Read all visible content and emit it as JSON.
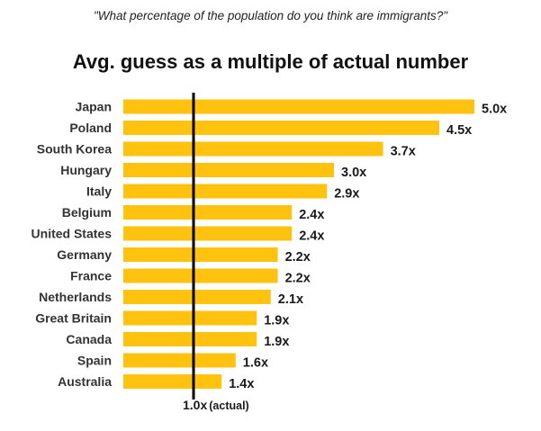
{
  "subtitle": "\"What percentage of the population do you think are immigrants?\"",
  "title": "Avg. guess as a multiple of actual number",
  "chart_data": {
    "type": "bar",
    "orientation": "horizontal",
    "title": "Avg. guess as a multiple of actual number",
    "subtitle": "\"What percentage of the population do you think are immigrants?\"",
    "categories": [
      "Japan",
      "Poland",
      "South Korea",
      "Hungary",
      "Italy",
      "Belgium",
      "United States",
      "Germany",
      "France",
      "Netherlands",
      "Great Britain",
      "Canada",
      "Spain",
      "Australia"
    ],
    "values": [
      5.0,
      4.5,
      3.7,
      3.0,
      2.9,
      2.4,
      2.4,
      2.2,
      2.2,
      2.1,
      1.9,
      1.9,
      1.6,
      1.4
    ],
    "value_labels": [
      "5.0x",
      "4.5x",
      "3.7x",
      "3.0x",
      "2.9x",
      "2.4x",
      "2.4x",
      "2.2x",
      "2.2x",
      "2.1x",
      "1.9x",
      "1.9x",
      "1.6x",
      "1.4x"
    ],
    "reference_line": {
      "value": 1.0,
      "label_value": "1.0x",
      "label_note": "(actual)"
    },
    "xlim": [
      0,
      5.0
    ],
    "bar_color": "#FFC20E",
    "reference_color": "#000000",
    "grid": false,
    "legend": "none"
  }
}
